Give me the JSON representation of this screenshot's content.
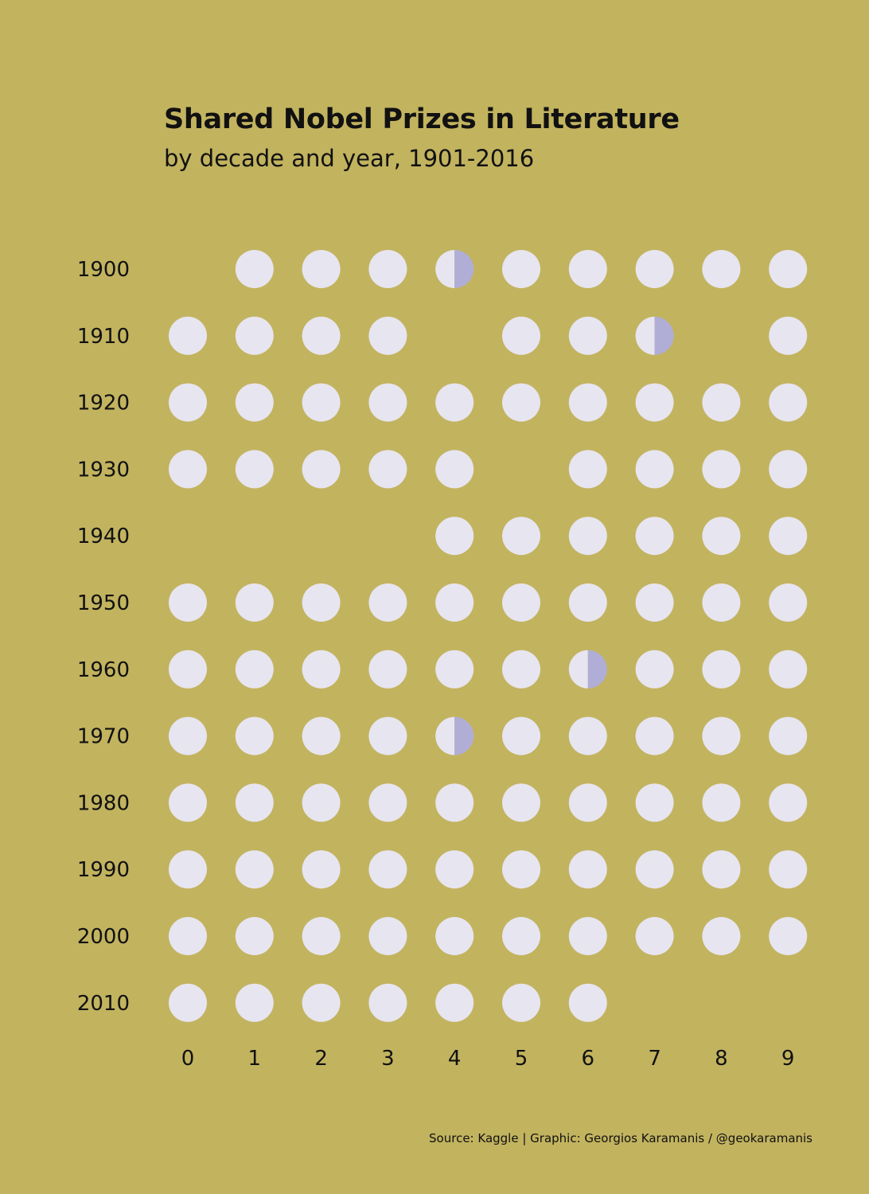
{
  "chart_data": {
    "type": "dot-grid",
    "title": "Shared Nobel Prizes in Literature",
    "subtitle": "by decade and year, 1901-2016",
    "caption": "Source: Kaggle | Graphic: Georgios Karamanis / @geokaramanis",
    "decades": [
      "1900",
      "1910",
      "1920",
      "1930",
      "1940",
      "1950",
      "1960",
      "1970",
      "1980",
      "1990",
      "2000",
      "2010"
    ],
    "years": [
      "0",
      "1",
      "2",
      "3",
      "4",
      "5",
      "6",
      "7",
      "8",
      "9"
    ],
    "laureates_per_year": [
      [
        0,
        1,
        1,
        1,
        2,
        1,
        1,
        1,
        1,
        1
      ],
      [
        1,
        1,
        1,
        1,
        0,
        1,
        1,
        2,
        0,
        1
      ],
      [
        1,
        1,
        1,
        1,
        1,
        1,
        1,
        1,
        1,
        1
      ],
      [
        1,
        1,
        1,
        1,
        1,
        0,
        1,
        1,
        1,
        1
      ],
      [
        0,
        0,
        0,
        0,
        1,
        1,
        1,
        1,
        1,
        1
      ],
      [
        1,
        1,
        1,
        1,
        1,
        1,
        1,
        1,
        1,
        1
      ],
      [
        1,
        1,
        1,
        1,
        1,
        1,
        2,
        1,
        1,
        1
      ],
      [
        1,
        1,
        1,
        1,
        2,
        1,
        1,
        1,
        1,
        1
      ],
      [
        1,
        1,
        1,
        1,
        1,
        1,
        1,
        1,
        1,
        1
      ],
      [
        1,
        1,
        1,
        1,
        1,
        1,
        1,
        1,
        1,
        1
      ],
      [
        1,
        1,
        1,
        1,
        1,
        1,
        1,
        1,
        1,
        1
      ],
      [
        1,
        1,
        1,
        1,
        1,
        1,
        1,
        0,
        0,
        0
      ]
    ],
    "colors": {
      "background": "#c2b35f",
      "single": "#e7e5f0",
      "shared": "#b0aed6",
      "text": "#111111"
    }
  }
}
